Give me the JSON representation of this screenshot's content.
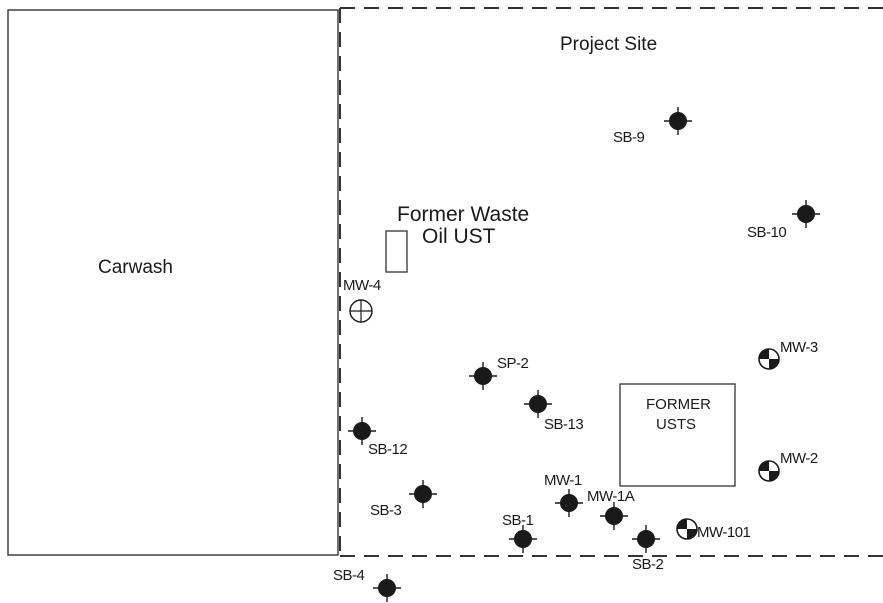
{
  "map": {
    "project_site_label": "Project Site",
    "carwash_label": "Carwash",
    "former_waste_oil_ust": {
      "line1": "Former Waste",
      "line2": "Oil UST"
    },
    "former_usts": {
      "line1": "FORMER",
      "line2": "USTS"
    }
  },
  "points": [
    {
      "id": "SB-9",
      "label": "SB-9",
      "kind": "soil-boring"
    },
    {
      "id": "SB-10",
      "label": "SB-10",
      "kind": "soil-boring"
    },
    {
      "id": "MW-4",
      "label": "MW-4",
      "kind": "monitoring-well-open"
    },
    {
      "id": "MW-3",
      "label": "MW-3",
      "kind": "monitoring-well"
    },
    {
      "id": "SP-2",
      "label": "SP-2",
      "kind": "soil-boring"
    },
    {
      "id": "SB-13",
      "label": "SB-13",
      "kind": "soil-boring"
    },
    {
      "id": "SB-12",
      "label": "SB-12",
      "kind": "soil-boring"
    },
    {
      "id": "MW-2",
      "label": "MW-2",
      "kind": "monitoring-well"
    },
    {
      "id": "SB-3",
      "label": "SB-3",
      "kind": "soil-boring"
    },
    {
      "id": "MW-1",
      "label": "MW-1",
      "kind": "soil-boring"
    },
    {
      "id": "MW-1A",
      "label": "MW-1A",
      "kind": "soil-boring"
    },
    {
      "id": "SB-1",
      "label": "SB-1",
      "kind": "soil-boring"
    },
    {
      "id": "MW-101",
      "label": "MW-101",
      "kind": "monitoring-well"
    },
    {
      "id": "SB-2",
      "label": "SB-2",
      "kind": "soil-boring"
    },
    {
      "id": "SB-4",
      "label": "SB-4",
      "kind": "soil-boring"
    }
  ],
  "colors": {
    "ink": "#1a1a1a",
    "background": "#ffffff"
  }
}
